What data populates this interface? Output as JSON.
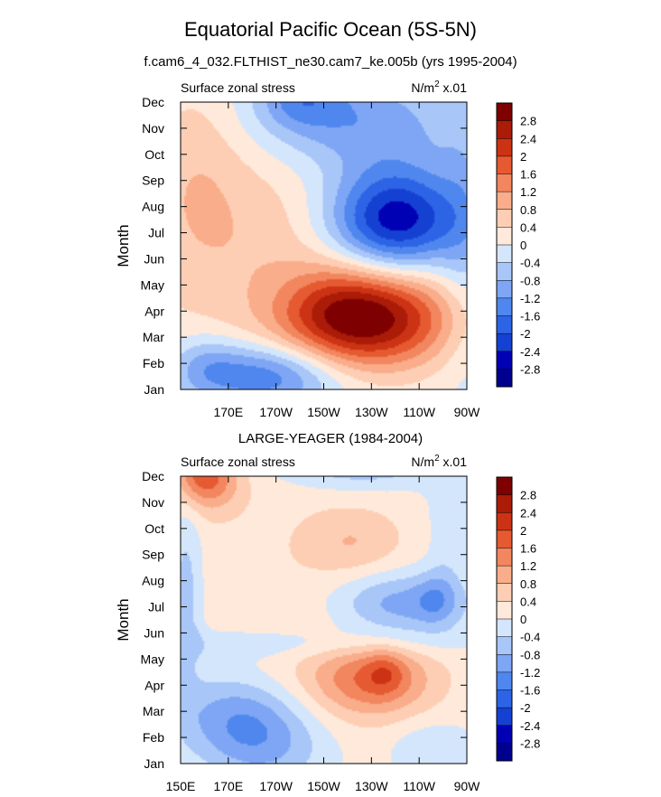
{
  "title": "Equatorial Pacific Ocean (5S-5N)",
  "case_name": "f.cam6_4_032.FLTHIST_ne30.cam7_ke.005b (yrs 1995-2004)",
  "colors": {
    "levels": [
      "#00008e",
      "#0000b4",
      "#1541d2",
      "#2d64e6",
      "#4f87ee",
      "#7ea6f4",
      "#a8c6f8",
      "#d4e6fc",
      "#ffe9da",
      "#fdceb4",
      "#f9ad8a",
      "#f2865e",
      "#e65a32",
      "#cc3314",
      "#aa1c08",
      "#7f0000"
    ]
  },
  "chart_data": [
    {
      "type": "heatmap",
      "panel_title": "",
      "left_label": "Surface zonal stress",
      "units_base": "N/m",
      "units_exp": "2",
      "units_scale": " x.01",
      "ylabel": "Month",
      "y_ticks": [
        "Jan",
        "Feb",
        "Mar",
        "Apr",
        "May",
        "Jun",
        "Jul",
        "Aug",
        "Sep",
        "Oct",
        "Nov",
        "Dec"
      ],
      "x_ticks": [
        "170E",
        "170W",
        "150W",
        "130W",
        "110W",
        "90W"
      ],
      "x_tick_lons": [
        170,
        190,
        210,
        230,
        250,
        270
      ],
      "xlim": [
        150,
        270
      ],
      "colorbar_labels": [
        "2.8",
        "2.4",
        "2",
        "1.6",
        "1.2",
        "0.8",
        "0.4",
        "0",
        "-0.4",
        "-0.8",
        "-1.2",
        "-1.6",
        "-2",
        "-2.4",
        "-2.8"
      ],
      "levels": [
        -2.8,
        -2.4,
        -2.0,
        -1.6,
        -1.2,
        -0.8,
        -0.4,
        0,
        0.4,
        0.8,
        1.2,
        1.6,
        2.0,
        2.4,
        2.8
      ],
      "blobs": [
        {
          "lon": 183,
          "mon": 5.5,
          "slon": 45,
          "smon": 3.2,
          "amp": 0.7,
          "ang": 0.25
        },
        {
          "lon": 157,
          "mon": 9.0,
          "slon": 14,
          "smon": 2.8,
          "amp": 0.4,
          "ang": 0.0
        },
        {
          "lon": 230,
          "mon": 2.6,
          "slon": 24,
          "smon": 1.3,
          "amp": 2.7,
          "ang": -0.13
        },
        {
          "lon": 214,
          "mon": 3.3,
          "slon": 16,
          "smon": 1.1,
          "amp": 0.6,
          "ang": -0.1
        },
        {
          "lon": 240,
          "mon": 6.5,
          "slon": 20,
          "smon": 1.4,
          "amp": -2.9,
          "ang": 0.0
        },
        {
          "lon": 222,
          "mon": 10.3,
          "slon": 30,
          "smon": 1.4,
          "amp": -1.2,
          "ang": 0.2
        },
        {
          "lon": 186,
          "mon": 0.5,
          "slon": 22,
          "smon": 0.9,
          "amp": -1.7,
          "ang": 0.0
        },
        {
          "lon": 160,
          "mon": 0.9,
          "slon": 10,
          "smon": 0.8,
          "amp": -0.6,
          "ang": 0.0
        },
        {
          "lon": 200,
          "mon": 11.2,
          "slon": 12,
          "smon": 0.8,
          "amp": -0.9,
          "ang": 0.0
        },
        {
          "lon": 270,
          "mon": 6.0,
          "slon": 8,
          "smon": 4.0,
          "amp": -0.5,
          "ang": 0.0
        }
      ]
    },
    {
      "type": "heatmap",
      "panel_title": "LARGE-YEAGER (1984-2004)",
      "left_label": "Surface zonal stress",
      "units_base": "N/m",
      "units_exp": "2",
      "units_scale": " x.01",
      "ylabel": "Month",
      "y_ticks": [
        "Jan",
        "Feb",
        "Mar",
        "Apr",
        "May",
        "Jun",
        "Jul",
        "Aug",
        "Sep",
        "Oct",
        "Nov",
        "Dec"
      ],
      "x_ticks": [
        "150E",
        "170E",
        "170W",
        "150W",
        "130W",
        "110W",
        "90W"
      ],
      "x_tick_lons": [
        150,
        170,
        190,
        210,
        230,
        250,
        270
      ],
      "xlim": [
        150,
        270
      ],
      "colorbar_labels": [
        "2.8",
        "2.4",
        "2",
        "1.6",
        "1.2",
        "0.8",
        "0.4",
        "0",
        "-0.4",
        "-0.8",
        "-1.2",
        "-1.6",
        "-2",
        "-2.4",
        "-2.8"
      ],
      "levels": [
        -2.8,
        -2.4,
        -2.0,
        -1.6,
        -1.2,
        -0.8,
        -0.4,
        0,
        0.4,
        0.8,
        1.2,
        1.6,
        2.0,
        2.4,
        2.8
      ],
      "blobs": [
        {
          "lon": 195,
          "mon": 5.5,
          "slon": 60,
          "smon": 6.0,
          "amp": 0.35,
          "ang": 0.0
        },
        {
          "lon": 230,
          "mon": 3.2,
          "slon": 18,
          "smon": 1.0,
          "amp": 1.4,
          "ang": 0.0
        },
        {
          "lon": 236,
          "mon": 3.5,
          "slon": 6,
          "smon": 0.6,
          "amp": 0.6,
          "ang": 0.0
        },
        {
          "lon": 158,
          "mon": 11.2,
          "slon": 8,
          "smon": 0.9,
          "amp": 1.6,
          "ang": 0.0
        },
        {
          "lon": 168,
          "mon": 10.8,
          "slon": 8,
          "smon": 0.8,
          "amp": 0.5,
          "ang": 0.0
        },
        {
          "lon": 222,
          "mon": 8.5,
          "slon": 14,
          "smon": 0.9,
          "amp": 0.55,
          "ang": 0.0
        },
        {
          "lon": 178,
          "mon": 1.3,
          "slon": 20,
          "smon": 1.4,
          "amp": -1.6,
          "ang": 0.35
        },
        {
          "lon": 242,
          "mon": 6.1,
          "slon": 20,
          "smon": 0.9,
          "amp": -1.2,
          "ang": 0.0
        },
        {
          "lon": 257,
          "mon": 6.3,
          "slon": 6,
          "smon": 0.7,
          "amp": -0.6,
          "ang": 0.0
        },
        {
          "lon": 225,
          "mon": 11.6,
          "slon": 24,
          "smon": 0.7,
          "amp": -1.0,
          "ang": 0.0
        },
        {
          "lon": 152,
          "mon": 6.5,
          "slon": 5,
          "smon": 2.5,
          "amp": -0.8,
          "ang": 0.0
        },
        {
          "lon": 185,
          "mon": 4.6,
          "slon": 55,
          "smon": 0.45,
          "amp": -0.45,
          "ang": 0.0
        },
        {
          "lon": 262,
          "mon": 9.0,
          "slon": 6,
          "smon": 2.0,
          "amp": -0.4,
          "ang": 0.0
        },
        {
          "lon": 255,
          "mon": 0.5,
          "slon": 12,
          "smon": 0.8,
          "amp": -0.5,
          "ang": 0.0
        }
      ]
    }
  ]
}
